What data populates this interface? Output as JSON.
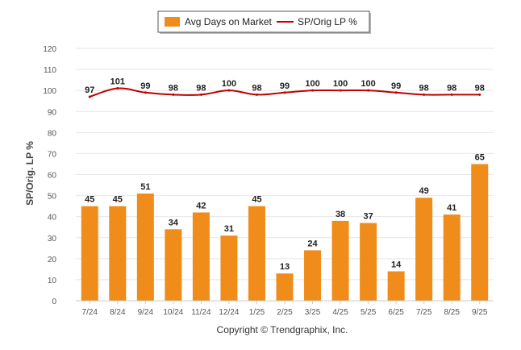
{
  "chart_data": {
    "type": "bar",
    "categories": [
      "7/24",
      "8/24",
      "9/24",
      "10/24",
      "11/24",
      "12/24",
      "1/25",
      "2/25",
      "3/25",
      "4/25",
      "5/25",
      "6/25",
      "7/25",
      "8/25",
      "9/25"
    ],
    "series": [
      {
        "name": "Avg Days on Market",
        "type": "bar",
        "color": "#F08C19",
        "values": [
          45,
          45,
          51,
          34,
          42,
          31,
          45,
          13,
          24,
          38,
          37,
          14,
          49,
          41,
          65
        ]
      },
      {
        "name": "SP/Orig LP %",
        "type": "line",
        "color": "#C00000",
        "values": [
          97,
          101,
          99,
          98,
          98,
          100,
          98,
          99,
          100,
          100,
          100,
          99,
          98,
          98,
          98
        ]
      }
    ],
    "ylabel": "SP/Orig. LP %",
    "xlabel": "",
    "ylim": [
      0,
      120
    ],
    "yticks": [
      0,
      10,
      20,
      30,
      40,
      50,
      60,
      70,
      80,
      90,
      100,
      110,
      120
    ],
    "grid": true,
    "legend": "top-center",
    "footer": "Copyright © Trendgraphix, Inc."
  }
}
